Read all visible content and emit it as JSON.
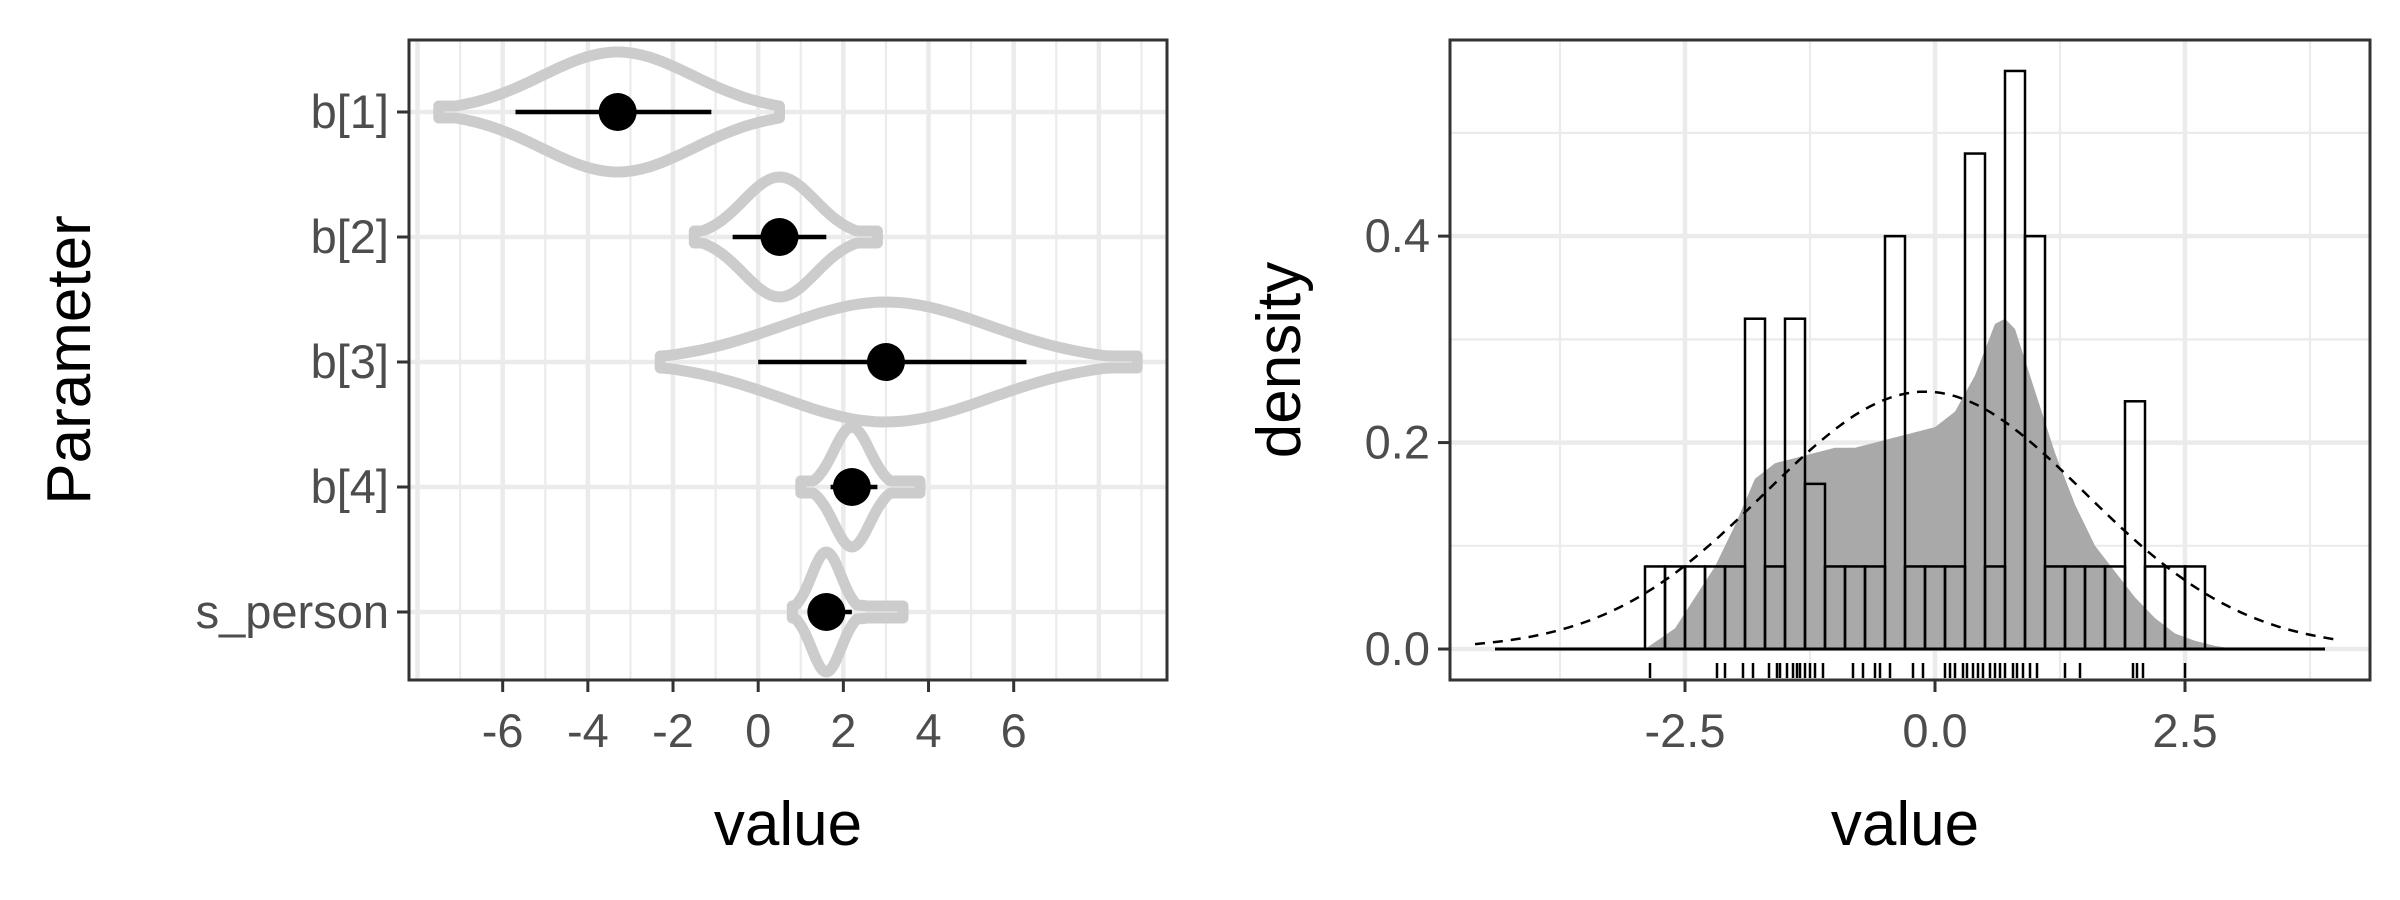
{
  "chart_data": [
    {
      "type": "violin",
      "xlabel": "value",
      "ylabel": "Parameter",
      "xticks": [
        -6,
        -4,
        -2,
        0,
        2,
        4,
        6
      ],
      "xlim": [
        -8.2,
        9.6
      ],
      "grid": true,
      "violin_color": "#cccccc",
      "point_color": "#000000",
      "parameters": [
        {
          "label": "b[1]",
          "median": -3.3,
          "interval": [
            -5.7,
            -1.1
          ],
          "range": [
            -7.5,
            0.5
          ]
        },
        {
          "label": "b[2]",
          "median": 0.5,
          "interval": [
            -0.6,
            1.6
          ],
          "range": [
            -1.5,
            2.8
          ]
        },
        {
          "label": "b[3]",
          "median": 3.0,
          "interval": [
            0.0,
            6.3
          ],
          "range": [
            -2.3,
            8.9
          ]
        },
        {
          "label": "b[4]",
          "median": 2.2,
          "interval": [
            1.7,
            2.8
          ],
          "range": [
            1.0,
            3.8
          ]
        },
        {
          "label": "s_person",
          "median": 1.6,
          "interval": [
            1.3,
            2.2
          ],
          "range": [
            0.8,
            3.4
          ]
        }
      ]
    },
    {
      "type": "histogram",
      "xlabel": "value",
      "ylabel": "density",
      "xticks": [
        -2.5,
        0.0,
        2.5
      ],
      "xtick_labels": [
        "-2.5",
        "0.0",
        "2.5"
      ],
      "yticks": [
        0.0,
        0.2,
        0.4
      ],
      "ytick_labels": [
        "0.0",
        "0.2",
        "0.4"
      ],
      "xlim": [
        -4.85,
        4.35
      ],
      "ylim": [
        -0.03,
        0.59
      ],
      "grid": true,
      "bin_width": 0.2,
      "bins_start": -2.9,
      "bin_densities": [
        0.08,
        0.08,
        0.08,
        0.08,
        0.08,
        0.32,
        0.08,
        0.32,
        0.16,
        0.08,
        0.08,
        0.08,
        0.4,
        0.08,
        0.08,
        0.08,
        0.48,
        0.08,
        0.56,
        0.4,
        0.08,
        0.08,
        0.08,
        0.08,
        0.24,
        0.08,
        0.08,
        0.08
      ],
      "baseline_range": [
        -4.4,
        3.9
      ],
      "kde": {
        "color": "#a9a9a9",
        "x": [
          -2.9,
          -2.6,
          -2.4,
          -2.2,
          -2.0,
          -1.8,
          -1.6,
          -1.4,
          -1.2,
          -1.0,
          -0.8,
          -0.6,
          -0.4,
          -0.2,
          0.0,
          0.2,
          0.4,
          0.5,
          0.6,
          0.7,
          0.8,
          0.9,
          1.0,
          1.2,
          1.4,
          1.6,
          1.8,
          2.0,
          2.2,
          2.4,
          2.6,
          2.8,
          3.0
        ],
        "y": [
          0.0,
          0.02,
          0.05,
          0.08,
          0.12,
          0.165,
          0.18,
          0.185,
          0.19,
          0.195,
          0.195,
          0.2,
          0.205,
          0.21,
          0.215,
          0.23,
          0.265,
          0.29,
          0.315,
          0.32,
          0.31,
          0.28,
          0.25,
          0.19,
          0.14,
          0.1,
          0.075,
          0.05,
          0.03,
          0.015,
          0.008,
          0.003,
          0.0
        ]
      },
      "normal_curve": {
        "mean": -0.1,
        "sd": 1.6,
        "style": "dashed"
      },
      "rug": [
        -2.85,
        -2.18,
        -2.1,
        -1.92,
        -1.82,
        -1.66,
        -1.58,
        -1.55,
        -1.48,
        -1.42,
        -1.38,
        -1.35,
        -1.3,
        -1.25,
        -1.2,
        -1.12,
        -0.82,
        -0.72,
        -0.6,
        -0.55,
        -0.45,
        -0.22,
        -0.12,
        0.1,
        0.15,
        0.2,
        0.28,
        0.32,
        0.38,
        0.43,
        0.48,
        0.55,
        0.6,
        0.65,
        0.7,
        0.78,
        0.82,
        0.88,
        0.95,
        1.02,
        1.3,
        1.45,
        1.98,
        2.02,
        2.08,
        2.5
      ]
    }
  ]
}
